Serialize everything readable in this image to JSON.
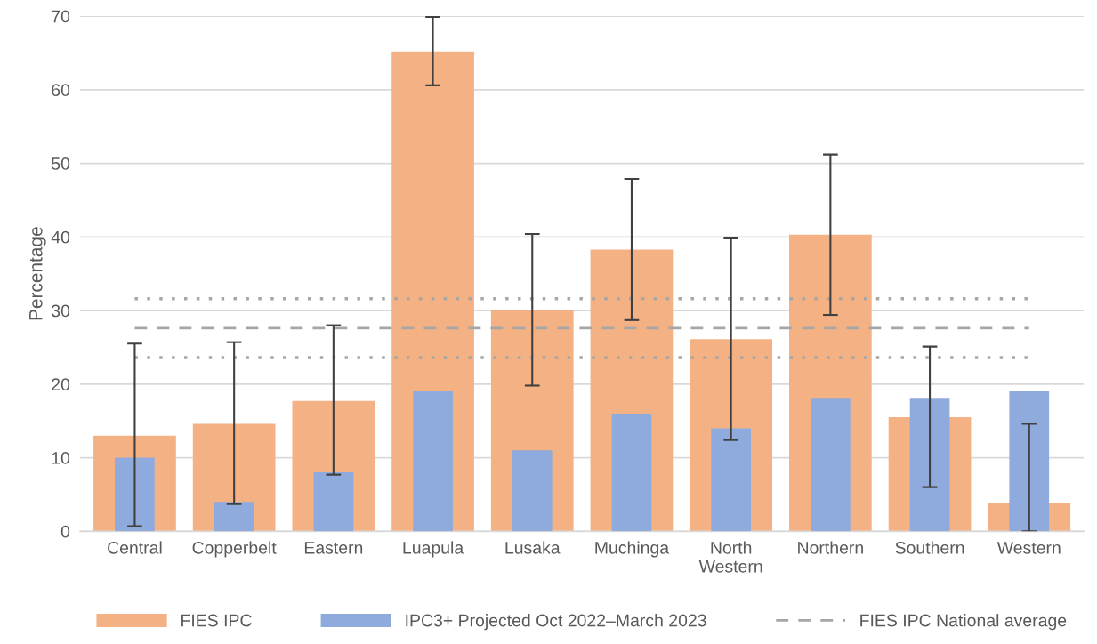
{
  "chart_data": {
    "type": "bar",
    "ylabel": "Percentage",
    "categories": [
      "Central",
      "Copperbelt",
      "Eastern",
      "Luapula",
      "Lusaka",
      "Muchinga",
      "North\nWestern",
      "Northern",
      "Southern",
      "Western"
    ],
    "series": [
      {
        "name": "FIES IPC",
        "color": "#f4b183",
        "values": [
          13.0,
          14.6,
          17.7,
          65.2,
          30.1,
          38.3,
          26.1,
          40.3,
          15.5,
          3.8
        ],
        "errors": [
          [
            0.7,
            25.5
          ],
          [
            3.7,
            25.7
          ],
          [
            7.7,
            28.0
          ],
          [
            60.6,
            69.9
          ],
          [
            19.8,
            40.4
          ],
          [
            28.7,
            47.9
          ],
          [
            12.4,
            39.8
          ],
          [
            29.4,
            51.2
          ],
          [
            6.0,
            25.1
          ],
          [
            0,
            14.6
          ]
        ]
      },
      {
        "name": "IPC3+ Projected Oct 2022–March 2023",
        "color": "#8faadc",
        "values": [
          10,
          4,
          8,
          19,
          11,
          16,
          14,
          18,
          18,
          19
        ]
      }
    ],
    "ylim": [
      0,
      70
    ],
    "yticks": [
      0,
      10,
      20,
      30,
      40,
      50,
      60,
      70
    ],
    "grid": "y",
    "legend": "bottom",
    "ref_lines": [
      {
        "axis": "y",
        "value": 27.6,
        "label": "FIES IPC National average",
        "color": "#a6a6a6",
        "line_style": "dashed"
      },
      {
        "axis": "y",
        "value": 31.6,
        "label": null,
        "color": "#a6a6a6",
        "line_style": "dotted"
      },
      {
        "axis": "y",
        "value": 23.6,
        "label": null,
        "color": "#a6a6a6",
        "line_style": "dotted"
      }
    ]
  }
}
